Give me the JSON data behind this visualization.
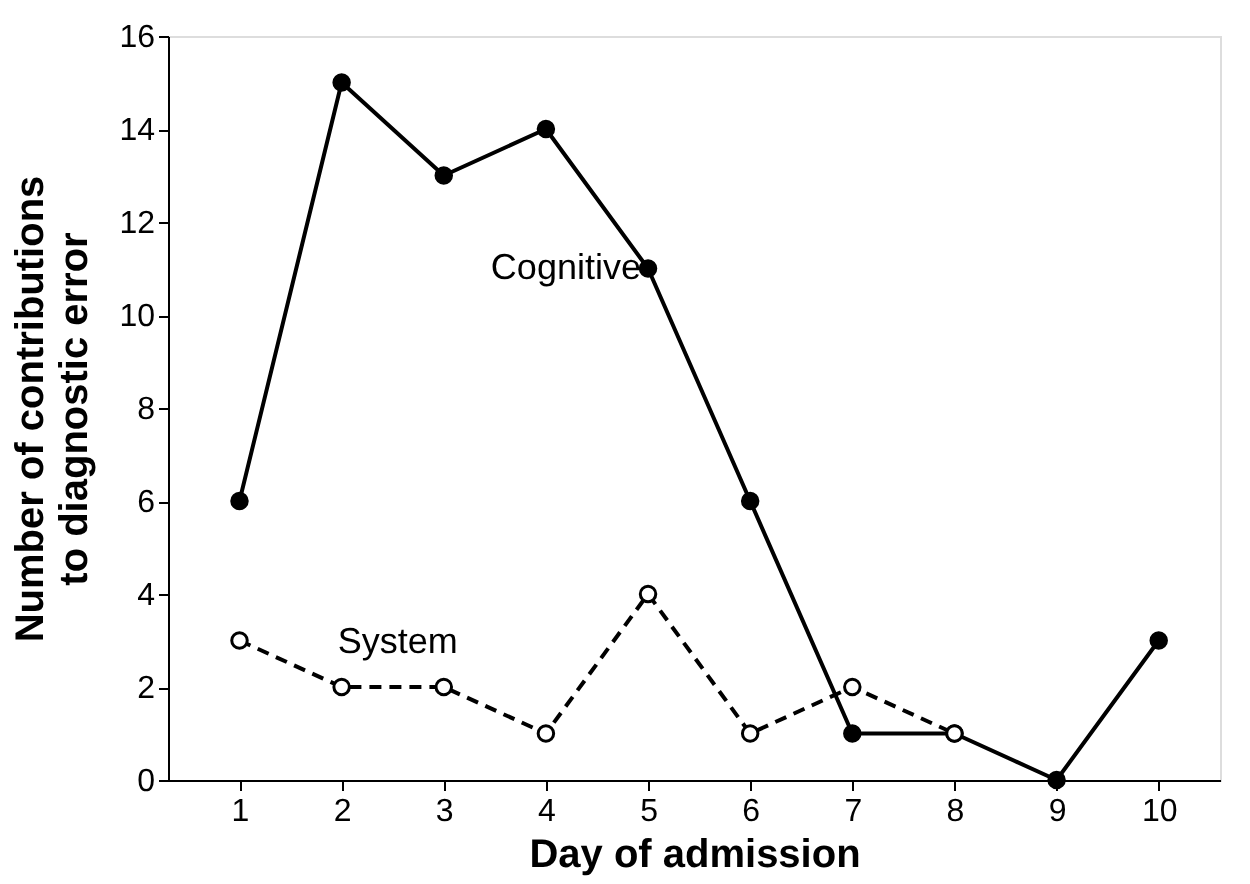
{
  "chart_data": {
    "type": "line",
    "xlabel": "Day of admission",
    "ylabel": "Number of contributions\nto diagnostic error",
    "x": [
      1,
      2,
      3,
      4,
      5,
      6,
      7,
      8,
      9,
      10
    ],
    "series": [
      {
        "name": "Cognitive",
        "color": "#000000",
        "values": [
          6,
          15,
          13,
          14,
          11,
          6,
          1,
          1,
          0,
          3
        ],
        "line_style": "solid",
        "marker": "circle"
      },
      {
        "name": "System",
        "color": "#000000",
        "values": [
          3,
          2,
          2,
          1,
          4,
          1,
          2,
          1,
          null,
          null
        ],
        "line_style": "dashed",
        "marker": "circle"
      }
    ],
    "xlim": [
      0.3,
      10.6
    ],
    "xticks": [
      1,
      2,
      3,
      4,
      5,
      6,
      7,
      8,
      9,
      10
    ],
    "ylim": [
      0,
      16
    ],
    "yticks": [
      0,
      2,
      4,
      6,
      8,
      10,
      12,
      14,
      16
    ],
    "grid": false,
    "legend": false
  }
}
